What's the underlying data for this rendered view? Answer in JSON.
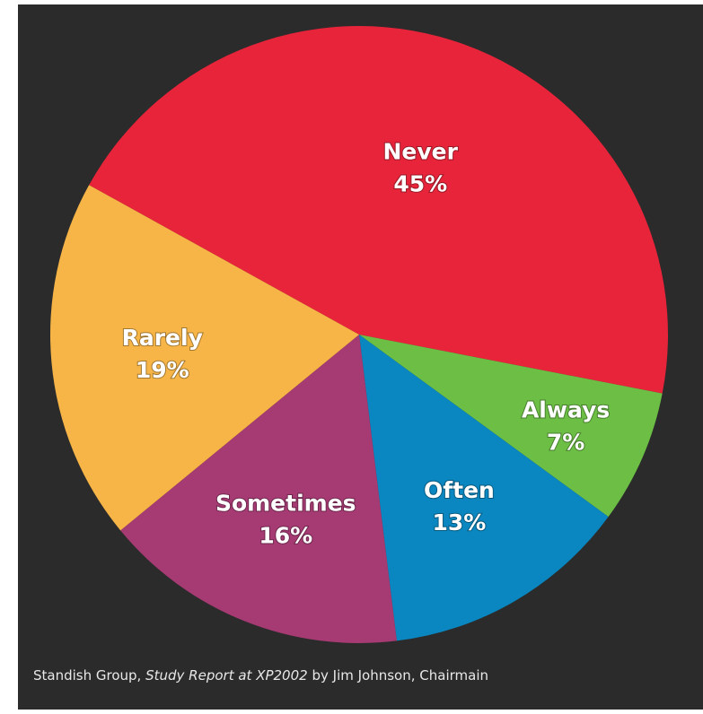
{
  "chart_data": {
    "type": "pie",
    "slices": [
      {
        "label": "Never",
        "value": 45,
        "value_label": "45%",
        "color": "#e8243a"
      },
      {
        "label": "Always",
        "value": 7,
        "value_label": "7%",
        "color": "#6cbf44"
      },
      {
        "label": "Often",
        "value": 13,
        "value_label": "13%",
        "color": "#0a87c1"
      },
      {
        "label": "Sometimes",
        "value": 16,
        "value_label": "16%",
        "color": "#a63a73"
      },
      {
        "label": "Rarely",
        "value": 19,
        "value_label": "19%",
        "color": "#f7b547"
      }
    ]
  },
  "caption": {
    "source": "Standish Group,",
    "title": "Study Report at XP2002",
    "author": "by Jim Johnson, Chairmain"
  },
  "colors": {
    "background": "#2b2b2b",
    "text": "#ffffff"
  }
}
